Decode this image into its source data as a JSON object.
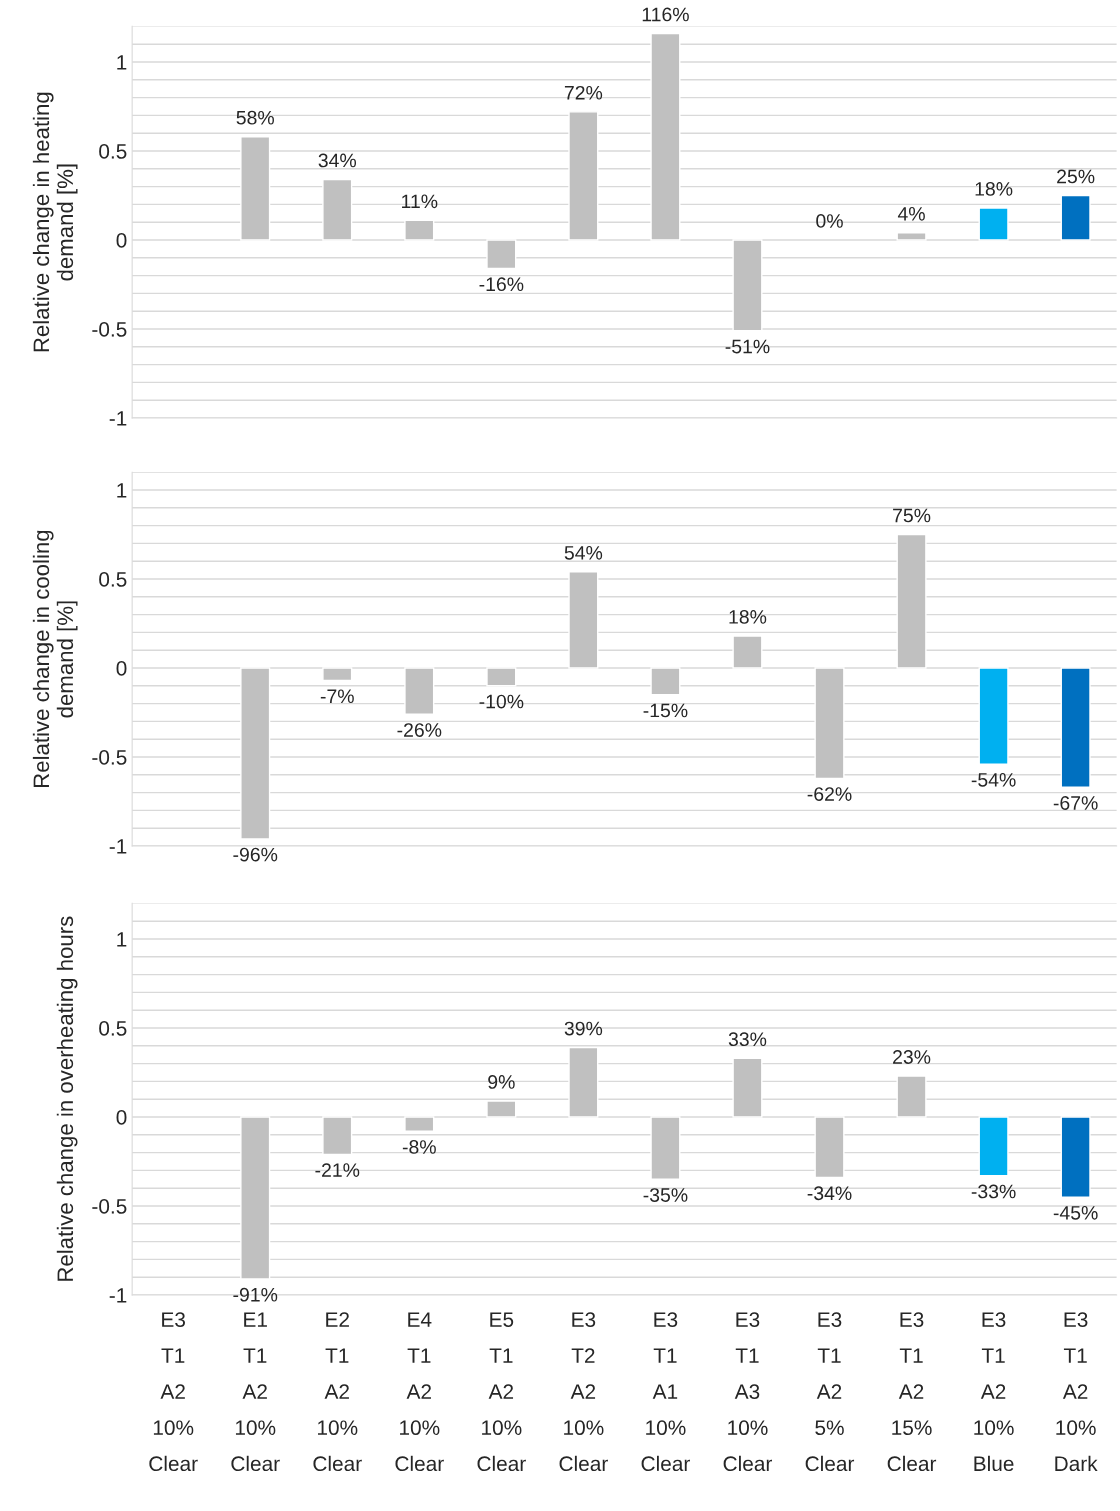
{
  "chart_data": [
    {
      "type": "bar",
      "ylabel": "Relative change in heating\ndemand [%]",
      "categories": [
        null,
        null,
        null,
        null,
        null,
        null,
        null,
        null,
        null,
        null,
        null,
        null
      ],
      "values": [
        null,
        0.58,
        0.34,
        0.11,
        -0.16,
        0.72,
        1.16,
        -0.51,
        0,
        0.04,
        0.18,
        0.25
      ],
      "value_labels": [
        null,
        "58%",
        "34%",
        "11%",
        "-16%",
        "72%",
        "116%",
        "-51%",
        "0%",
        "4%",
        "18%",
        "25%"
      ],
      "colors": [
        "#c0c0c0",
        "#c0c0c0",
        "#c0c0c0",
        "#c0c0c0",
        "#c0c0c0",
        "#c0c0c0",
        "#c0c0c0",
        "#c0c0c0",
        "#c0c0c0",
        "#c0c0c0",
        "#00b0f0",
        "#0070c0"
      ],
      "ylim": [
        -1,
        1.2
      ],
      "yticks": [
        -1,
        {
          "value": -0.9,
          "label": null
        },
        {
          "value": -0.8,
          "label": null
        },
        {
          "value": -0.7,
          "label": null
        },
        {
          "value": -0.6,
          "label": null
        },
        -0.5,
        {
          "value": -0.4,
          "label": null
        },
        {
          "value": -0.3,
          "label": null
        },
        {
          "value": -0.2,
          "label": null
        },
        {
          "value": -0.1,
          "label": null
        },
        0,
        {
          "value": 0.1,
          "label": null
        },
        {
          "value": 0.2,
          "label": null
        },
        {
          "value": 0.3,
          "label": null
        },
        {
          "value": 0.4,
          "label": null
        },
        0.5,
        {
          "value": 0.6,
          "label": null
        },
        {
          "value": 0.7,
          "label": null
        },
        {
          "value": 0.8,
          "label": null
        },
        {
          "value": 0.9,
          "label": null
        },
        1,
        {
          "value": 1.1,
          "label": null
        },
        {
          "value": 1.2,
          "label": null
        }
      ],
      "grid": "y"
    },
    {
      "type": "bar",
      "ylabel": "Relative change in cooling\ndemand [%]",
      "categories": [
        null,
        null,
        null,
        null,
        null,
        null,
        null,
        null,
        null,
        null,
        null,
        null
      ],
      "values": [
        null,
        -0.96,
        -0.07,
        -0.26,
        -0.1,
        0.54,
        -0.15,
        0.18,
        -0.62,
        0.75,
        -0.54,
        -0.67
      ],
      "value_labels": [
        null,
        "-96%",
        "-7%",
        "-26%",
        "-10%",
        "54%",
        "-15%",
        "18%",
        "-62%",
        "75%",
        "-54%",
        "-67%"
      ],
      "colors": [
        "#c0c0c0",
        "#c0c0c0",
        "#c0c0c0",
        "#c0c0c0",
        "#c0c0c0",
        "#c0c0c0",
        "#c0c0c0",
        "#c0c0c0",
        "#c0c0c0",
        "#c0c0c0",
        "#00b0f0",
        "#0070c0"
      ],
      "ylim": [
        -1,
        1.1
      ],
      "yticks": [
        -1,
        {
          "value": -0.9,
          "label": null
        },
        {
          "value": -0.8,
          "label": null
        },
        {
          "value": -0.7,
          "label": null
        },
        {
          "value": -0.6,
          "label": null
        },
        -0.5,
        {
          "value": -0.4,
          "label": null
        },
        {
          "value": -0.3,
          "label": null
        },
        {
          "value": -0.2,
          "label": null
        },
        {
          "value": -0.1,
          "label": null
        },
        0,
        {
          "value": 0.1,
          "label": null
        },
        {
          "value": 0.2,
          "label": null
        },
        {
          "value": 0.3,
          "label": null
        },
        {
          "value": 0.4,
          "label": null
        },
        0.5,
        {
          "value": 0.6,
          "label": null
        },
        {
          "value": 0.7,
          "label": null
        },
        {
          "value": 0.8,
          "label": null
        },
        {
          "value": 0.9,
          "label": null
        },
        1,
        {
          "value": 1.1,
          "label": null
        }
      ],
      "grid": "y"
    },
    {
      "type": "bar",
      "ylabel": "Relative change in overheating hours",
      "categories": [
        "E3\nT1\nA2\n10%\nClear",
        "E1\nT1\nA2\n10%\nClear",
        "E2\nT1\nA2\n10%\nClear",
        "E4\nT1\nA2\n10%\nClear",
        "E5\nT1\nA2\n10%\nClear",
        "E3\nT2\nA2\n10%\nClear",
        "E3\nT1\nA1\n10%\nClear",
        "E3\nT1\nA3\n10%\nClear",
        "E3\nT1\nA2\n5%\nClear",
        "E3\nT1\nA2\n15%\nClear",
        "E3\nT1\nA2\n10%\nBlue",
        "E3\nT1\nA2\n10%\nDark"
      ],
      "values": [
        null,
        -0.91,
        -0.21,
        -0.08,
        0.09,
        0.39,
        -0.35,
        0.33,
        -0.34,
        0.23,
        -0.33,
        -0.45
      ],
      "value_labels": [
        null,
        "-91%",
        "-21%",
        "-8%",
        "9%",
        "39%",
        "-35%",
        "33%",
        "-34%",
        "23%",
        "-33%",
        "-45%"
      ],
      "colors": [
        "#c0c0c0",
        "#c0c0c0",
        "#c0c0c0",
        "#c0c0c0",
        "#c0c0c0",
        "#c0c0c0",
        "#c0c0c0",
        "#c0c0c0",
        "#c0c0c0",
        "#c0c0c0",
        "#00b0f0",
        "#0070c0"
      ],
      "ylim": [
        -1,
        1.2
      ],
      "yticks": [
        -1,
        {
          "value": -0.9,
          "label": null
        },
        {
          "value": -0.8,
          "label": null
        },
        {
          "value": -0.7,
          "label": null
        },
        {
          "value": -0.6,
          "label": null
        },
        -0.5,
        {
          "value": -0.4,
          "label": null
        },
        {
          "value": -0.3,
          "label": null
        },
        {
          "value": -0.2,
          "label": null
        },
        {
          "value": -0.1,
          "label": null
        },
        0,
        {
          "value": 0.1,
          "label": null
        },
        {
          "value": 0.2,
          "label": null
        },
        {
          "value": 0.3,
          "label": null
        },
        {
          "value": 0.4,
          "label": null
        },
        0.5,
        {
          "value": 0.6,
          "label": null
        },
        {
          "value": 0.7,
          "label": null
        },
        {
          "value": 0.8,
          "label": null
        },
        {
          "value": 0.9,
          "label": null
        },
        1,
        {
          "value": 1.1,
          "label": null
        },
        {
          "value": 1.2,
          "label": null
        }
      ],
      "grid": "y"
    }
  ]
}
